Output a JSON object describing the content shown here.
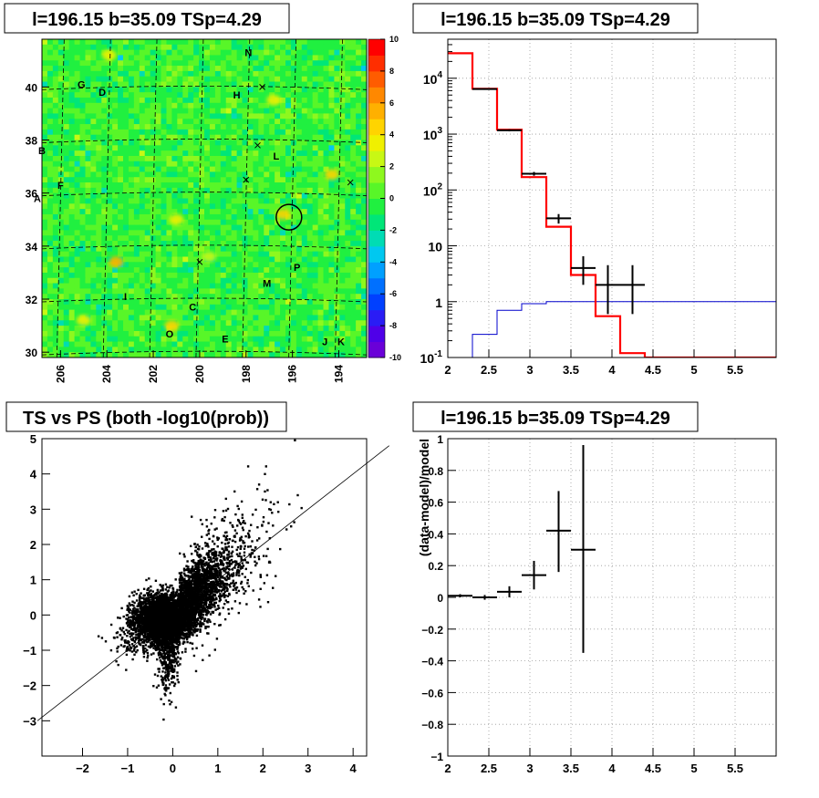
{
  "chart_data": [
    {
      "panel": "top-left",
      "type": "heatmap",
      "title": "l=196.15 b=35.09 TSp=4.29",
      "x_ticks": [
        "206",
        "204",
        "202",
        "200",
        "198",
        "196",
        "194"
      ],
      "x_tick_values": [
        206,
        204,
        202,
        200,
        198,
        196,
        194
      ],
      "xlim": [
        206.8,
        192.8
      ],
      "y_ticks": [
        "30",
        "32",
        "34",
        "36",
        "38",
        "40"
      ],
      "y_tick_values": [
        30,
        32,
        34,
        36,
        38,
        40
      ],
      "ylim": [
        29.8,
        41.8
      ],
      "colorbar": {
        "ticks": [
          "10",
          "8",
          "6",
          "4",
          "2",
          "0",
          "-2",
          "-4",
          "-6",
          "-8",
          "-10"
        ],
        "tick_values": [
          10,
          8,
          6,
          4,
          2,
          0,
          -2,
          -4,
          -6,
          -8,
          -10
        ],
        "range": [
          -10,
          10
        ],
        "colors": [
          "#6a00d8",
          "#4f00e8",
          "#2a1cf5",
          "#0040ff",
          "#0070ff",
          "#00a0ff",
          "#00c8f0",
          "#00dcb4",
          "#00e678",
          "#20f040",
          "#58f628",
          "#8ef81e",
          "#c8f814",
          "#f0f000",
          "#ffd400",
          "#ffb000",
          "#ff8800",
          "#ff5c00",
          "#ff2e00",
          "#ff0000"
        ]
      },
      "labels": [
        {
          "text": "N",
          "l": 197.9,
          "b": 41.3
        },
        {
          "text": "G",
          "l": 205.1,
          "b": 40.1
        },
        {
          "text": "D",
          "l": 204.2,
          "b": 39.8
        },
        {
          "text": "H",
          "l": 198.4,
          "b": 39.7
        },
        {
          "text": "B",
          "l": 206.8,
          "b": 37.6
        },
        {
          "text": "L",
          "l": 196.7,
          "b": 37.4
        },
        {
          "text": "F",
          "l": 206.0,
          "b": 36.3
        },
        {
          "text": "A",
          "l": 207.0,
          "b": 35.8
        },
        {
          "text": "P",
          "l": 195.8,
          "b": 33.2
        },
        {
          "text": "M",
          "l": 197.1,
          "b": 32.6
        },
        {
          "text": "I",
          "l": 203.2,
          "b": 32.1
        },
        {
          "text": "C",
          "l": 200.3,
          "b": 31.7
        },
        {
          "text": "O",
          "l": 201.3,
          "b": 30.7
        },
        {
          "text": "E",
          "l": 198.9,
          "b": 30.5
        },
        {
          "text": "J",
          "l": 194.6,
          "b": 30.4
        },
        {
          "text": "K",
          "l": 193.9,
          "b": 30.4
        }
      ],
      "crosses": [
        {
          "l": 197.3,
          "b": 40.0
        },
        {
          "l": 197.5,
          "b": 37.8
        },
        {
          "l": 198.0,
          "b": 36.5
        },
        {
          "l": 200.0,
          "b": 33.4
        },
        {
          "l": 193.5,
          "b": 36.4
        }
      ],
      "circle": {
        "l": 196.15,
        "b": 35.09,
        "r_deg": 0.45
      },
      "hotspots": [
        {
          "l": 203.6,
          "b": 33.4,
          "v": 5
        },
        {
          "l": 201.2,
          "b": 31.0,
          "v": 4
        },
        {
          "l": 196.4,
          "b": 35.2,
          "v": 4
        },
        {
          "l": 194.3,
          "b": 36.7,
          "v": 4
        },
        {
          "l": 205.0,
          "b": 31.2,
          "v": 3
        },
        {
          "l": 203.9,
          "b": 41.2,
          "v": 3
        },
        {
          "l": 201.0,
          "b": 35.0,
          "v": 3
        },
        {
          "l": 199.6,
          "b": 33.6,
          "v": 2
        },
        {
          "l": 196.8,
          "b": 39.5,
          "v": 3
        }
      ]
    },
    {
      "panel": "top-right",
      "type": "line",
      "title": "l=196.15 b=35.09 TSp=4.29",
      "xlim": [
        2,
        6
      ],
      "ylim": [
        0.1,
        50000
      ],
      "ylog": true,
      "x_ticks": [
        "2",
        "2.5",
        "3",
        "3.5",
        "4",
        "4.5",
        "5",
        "5.5"
      ],
      "x_tick_values": [
        2,
        2.5,
        3,
        3.5,
        4,
        4.5,
        5,
        5.5
      ],
      "y_ticks": [
        {
          "base": "10",
          "exp": "-1",
          "value": 0.1
        },
        {
          "base": "1",
          "exp": "",
          "value": 1
        },
        {
          "base": "10",
          "exp": "",
          "value": 10
        },
        {
          "base": "10",
          "exp": "2",
          "value": 100
        },
        {
          "base": "10",
          "exp": "3",
          "value": 1000
        },
        {
          "base": "10",
          "exp": "4",
          "value": 10000
        }
      ],
      "grid": true,
      "model_hist": {
        "color": "#ff0000",
        "edges": [
          2.0,
          2.3,
          2.6,
          2.9,
          3.2,
          3.5,
          3.8,
          4.1,
          4.4,
          6.0
        ],
        "values": [
          28000,
          6500,
          1200,
          170,
          22,
          3.0,
          0.55,
          0.12,
          0.1
        ]
      },
      "blue_hist": {
        "color": "#0000cc",
        "edges": [
          2.0,
          2.3,
          2.6,
          2.9,
          3.2,
          6.0
        ],
        "values": [
          0.05,
          0.26,
          0.7,
          0.92,
          1.0
        ]
      },
      "data_points": [
        {
          "x": 2.45,
          "y": 6400,
          "xerr": 0.15,
          "ylo": 6200,
          "yhi": 6600
        },
        {
          "x": 2.75,
          "y": 1170,
          "xerr": 0.15,
          "ylo": 1120,
          "yhi": 1220
        },
        {
          "x": 3.05,
          "y": 195,
          "xerr": 0.15,
          "ylo": 180,
          "yhi": 210
        },
        {
          "x": 3.35,
          "y": 31,
          "xerr": 0.15,
          "ylo": 25,
          "yhi": 37
        },
        {
          "x": 3.65,
          "y": 4,
          "xerr": 0.15,
          "ylo": 2.0,
          "yhi": 6.5
        },
        {
          "x": 3.95,
          "y": 2,
          "xerr": 0.15,
          "ylo": 0.6,
          "yhi": 4.5
        },
        {
          "x": 4.25,
          "y": 2,
          "xerr": 0.15,
          "ylo": 0.6,
          "yhi": 4.5
        }
      ]
    },
    {
      "panel": "bottom-left",
      "type": "scatter",
      "title": "TS vs PS (both -log10(prob))",
      "xlim": [
        -2.9,
        4.3
      ],
      "ylim": [
        -4.0,
        5.0
      ],
      "x_ticks": [
        "−2",
        "−1",
        "0",
        "1",
        "2",
        "3",
        "4"
      ],
      "x_tick_values": [
        -2,
        -1,
        0,
        1,
        2,
        3,
        4
      ],
      "y_ticks": [
        "−3",
        "−2",
        "−1",
        "0",
        "1",
        "2",
        "3",
        "4",
        "5"
      ],
      "y_tick_values": [
        -3,
        -2,
        -1,
        0,
        1,
        2,
        3,
        4,
        5
      ],
      "diagonal": {
        "slope": 1,
        "intercept": 0
      },
      "n_points": 6500,
      "color": "#000000"
    },
    {
      "panel": "bottom-right",
      "type": "scatter",
      "title": "l=196.15 b=35.09 TSp=4.29",
      "xlim": [
        2,
        6
      ],
      "ylim": [
        -1,
        1
      ],
      "ylabel": "(data-model)/model",
      "x_ticks": [
        "2",
        "2.5",
        "3",
        "3.5",
        "4",
        "4.5",
        "5",
        "5.5"
      ],
      "x_tick_values": [
        2,
        2.5,
        3,
        3.5,
        4,
        4.5,
        5,
        5.5
      ],
      "y_ticks": [
        "1",
        "0.8",
        "0.6",
        "0.4",
        "0.2",
        "0",
        "−0.2",
        "−0.4",
        "−0.6",
        "−0.8",
        "−1"
      ],
      "y_tick_values": [
        1,
        0.8,
        0.6,
        0.4,
        0.2,
        0,
        -0.2,
        -0.4,
        -0.6,
        -0.8,
        -1
      ],
      "grid": true,
      "points": [
        {
          "x": 2.15,
          "y": 0.01,
          "xerr": 0.15,
          "ylo": 0.0,
          "yhi": 0.02
        },
        {
          "x": 2.45,
          "y": 0.0,
          "xerr": 0.15,
          "ylo": -0.015,
          "yhi": 0.015
        },
        {
          "x": 2.75,
          "y": 0.035,
          "xerr": 0.15,
          "ylo": 0.0,
          "yhi": 0.07
        },
        {
          "x": 3.05,
          "y": 0.14,
          "xerr": 0.15,
          "ylo": 0.05,
          "yhi": 0.23
        },
        {
          "x": 3.35,
          "y": 0.42,
          "xerr": 0.15,
          "ylo": 0.16,
          "yhi": 0.67
        },
        {
          "x": 3.65,
          "y": 0.3,
          "xerr": 0.15,
          "ylo": -0.35,
          "yhi": 0.96
        }
      ]
    }
  ]
}
